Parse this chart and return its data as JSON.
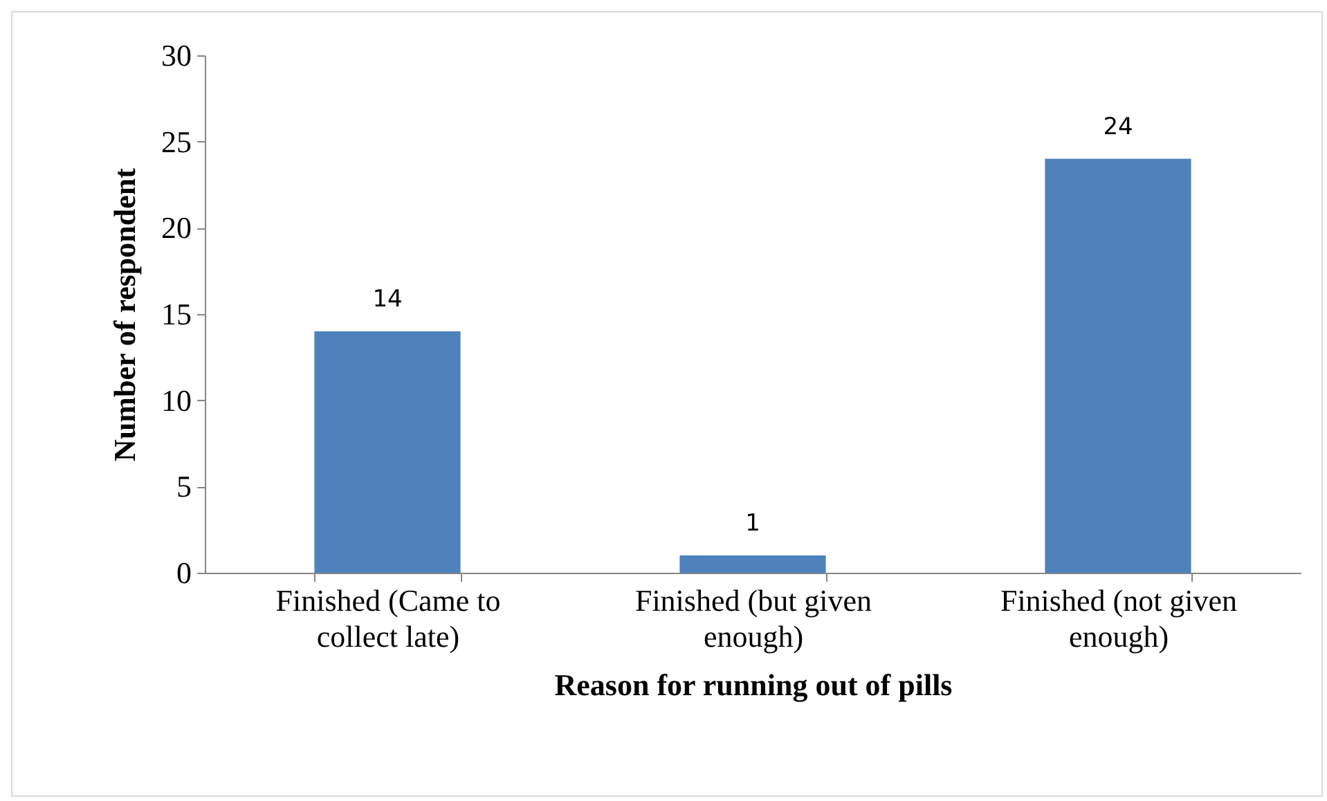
{
  "chart_data": {
    "type": "bar",
    "xlabel": "Reason for running out of pills",
    "ylabel": "Number of respondent",
    "categories": [
      "Finished (Came to collect late)",
      "Finished (but given enough)",
      "Finished (not given enough)"
    ],
    "values": [
      14,
      1,
      24
    ],
    "color": "#4f81bd",
    "ylim": [
      0,
      30
    ],
    "yticks": [
      0,
      5,
      10,
      15,
      20,
      25,
      30
    ],
    "grid": false,
    "data_labels": true
  }
}
